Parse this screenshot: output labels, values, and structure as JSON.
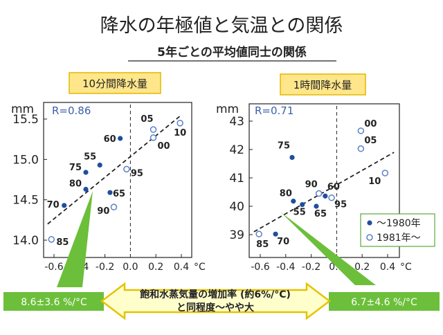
{
  "title": "降水の年極値と気温との関係",
  "subtitle": "5年ごとの平均値同士の関係",
  "bottom_note": {
    "line1": "飽和水蒸気量の増加率 (約6%/°C)",
    "line2": "と同程度～やや大"
  },
  "colors": {
    "filled": "#1f4e9c",
    "open": "#5b7fc7",
    "label_bg": "#ffe68a",
    "label_border": "#e0b800",
    "green": "#6cbf3a",
    "note_bg": "#ffffcc",
    "note_arrow": "#f7df40"
  },
  "chart_data": [
    {
      "type": "scatter",
      "title": "10分間降水量",
      "ylabel": "mm",
      "r_label": "R=0.86",
      "rate_label": "8.6±3.6 %/°C",
      "x_tick_labels": [
        "-0.6",
        "-0.4",
        "-0.2",
        "0.0",
        "0.2",
        "0.4"
      ],
      "x_unit": "°C",
      "y_tick_labels": [
        "15.5",
        "15.0",
        "14.5",
        "14.0"
      ],
      "xlim": [
        -0.65,
        0.45
      ],
      "ylim": [
        13.9,
        15.7
      ],
      "yticks": [
        14.0,
        14.5,
        15.0,
        15.5
      ],
      "trend": [
        [
          -0.65,
          14.2
        ],
        [
          0.4,
          15.55
        ]
      ],
      "points": [
        {
          "label": "70",
          "x": -0.52,
          "y": 14.43,
          "filled": true
        },
        {
          "label": "75",
          "x": -0.35,
          "y": 14.84,
          "filled": true
        },
        {
          "label": "80",
          "x": -0.35,
          "y": 14.63,
          "filled": true
        },
        {
          "label": "55",
          "x": -0.24,
          "y": 14.93,
          "filled": true
        },
        {
          "label": "60",
          "x": -0.08,
          "y": 15.26,
          "filled": true
        },
        {
          "label": "65",
          "x": -0.16,
          "y": 14.59,
          "filled": true
        },
        {
          "label": "85",
          "x": -0.62,
          "y": 14.01,
          "filled": false
        },
        {
          "label": "90",
          "x": -0.13,
          "y": 14.41,
          "filled": false
        },
        {
          "label": "95",
          "x": -0.03,
          "y": 14.88,
          "filled": false
        },
        {
          "label": "05",
          "x": 0.18,
          "y": 15.37,
          "filled": false
        },
        {
          "label": "00",
          "x": 0.18,
          "y": 15.27,
          "filled": false
        },
        {
          "label": "10",
          "x": 0.39,
          "y": 15.45,
          "filled": false
        }
      ]
    },
    {
      "type": "scatter",
      "title": "1時間降水量",
      "ylabel": "mm",
      "r_label": "R=0.71",
      "rate_label": "6.7±4.6 %/°C",
      "x_tick_labels": [
        "-0.6",
        "-0.4",
        "-0.2",
        "0.0",
        "0.2",
        "0.4"
      ],
      "x_unit": "°C",
      "y_tick_labels": [
        "43",
        "42",
        "41",
        "40",
        "39"
      ],
      "xlim": [
        -0.65,
        0.45
      ],
      "ylim": [
        38.6,
        43.4
      ],
      "yticks": [
        39,
        40,
        41,
        42,
        43
      ],
      "trend": [
        [
          -0.65,
          39.1
        ],
        [
          0.45,
          41.9
        ]
      ],
      "legend": [
        {
          "label": "～1980年",
          "filled": true
        },
        {
          "label": "1981年～",
          "filled": false
        }
      ],
      "points": [
        {
          "label": "75",
          "x": -0.35,
          "y": 41.72,
          "filled": true
        },
        {
          "label": "80",
          "x": -0.34,
          "y": 40.18,
          "filled": true
        },
        {
          "label": "55",
          "x": -0.27,
          "y": 40.06,
          "filled": true
        },
        {
          "label": "65",
          "x": -0.16,
          "y": 40.0,
          "filled": true
        },
        {
          "label": "60",
          "x": -0.09,
          "y": 40.36,
          "filled": true
        },
        {
          "label": "70",
          "x": -0.48,
          "y": 39.02,
          "filled": true
        },
        {
          "label": "85",
          "x": -0.61,
          "y": 39.02,
          "filled": false
        },
        {
          "label": "90",
          "x": -0.14,
          "y": 40.45,
          "filled": false
        },
        {
          "label": "95",
          "x": -0.04,
          "y": 40.3,
          "filled": false
        },
        {
          "label": "00",
          "x": 0.19,
          "y": 42.66,
          "filled": false
        },
        {
          "label": "05",
          "x": 0.19,
          "y": 42.03,
          "filled": false
        },
        {
          "label": "10",
          "x": 0.38,
          "y": 41.17,
          "filled": false
        }
      ]
    }
  ]
}
